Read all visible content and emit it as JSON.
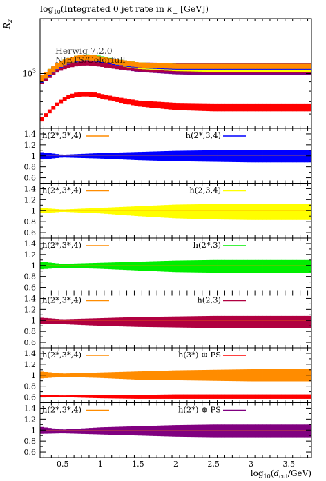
{
  "chart_data": {
    "type": "area",
    "title": "log10(Integrated 0 jet rate in kT [GeV])",
    "ylabel_main": "R2",
    "xlabel": "log10(dcut/GeV)",
    "xlim": [
      0.2,
      3.8
    ],
    "x_ticks": [
      "0.5",
      "1",
      "1.5",
      "2",
      "2.5",
      "3",
      "3.5"
    ],
    "main": {
      "ylim": [
        500,
        2000
      ],
      "y_tick_label": "10^3",
      "watermark": [
        "Herwig 7.2.0",
        "NJETS/Colorfull"
      ],
      "series": [
        {
          "name": "h(2*,3*,4)",
          "color": "#ff8c00",
          "x": [
            0.2,
            0.3,
            0.4,
            0.5,
            0.6,
            0.7,
            0.8,
            0.9,
            1.0,
            1.2,
            1.5,
            2.0,
            2.5,
            3.0,
            3.5,
            3.8
          ],
          "lo": [
            880,
            960,
            1040,
            1100,
            1140,
            1170,
            1180,
            1175,
            1160,
            1120,
            1080,
            1060,
            1060,
            1060,
            1060,
            1060
          ],
          "hi": [
            960,
            1040,
            1120,
            1180,
            1230,
            1260,
            1270,
            1265,
            1240,
            1200,
            1150,
            1130,
            1130,
            1130,
            1130,
            1130
          ]
        },
        {
          "name": "h(2*,3,4)",
          "color": "#0000ff",
          "x": [
            0.2,
            0.3,
            0.4,
            0.5,
            0.6,
            0.7,
            0.8,
            0.9,
            1.0,
            1.2,
            1.5,
            2.0,
            2.5,
            3.0,
            3.5,
            3.8
          ],
          "lo": [
            870,
            950,
            1030,
            1090,
            1130,
            1160,
            1170,
            1165,
            1150,
            1110,
            1070,
            1050,
            1050,
            1050,
            1050,
            1050
          ],
          "hi": [
            950,
            1030,
            1110,
            1170,
            1220,
            1250,
            1260,
            1255,
            1230,
            1190,
            1140,
            1120,
            1120,
            1120,
            1120,
            1120
          ]
        },
        {
          "name": "h(2,3,4)",
          "color": "#ffff00",
          "x": [
            0.2,
            0.3,
            0.4,
            0.5,
            0.6,
            0.7,
            0.8,
            0.9,
            1.0,
            1.2,
            1.5,
            2.0,
            2.5,
            3.0,
            3.5,
            3.8
          ],
          "lo": [
            870,
            950,
            1030,
            1090,
            1130,
            1160,
            1170,
            1165,
            1150,
            1110,
            1060,
            1030,
            1020,
            1020,
            1020,
            1020
          ],
          "hi": [
            950,
            1030,
            1110,
            1170,
            1220,
            1250,
            1260,
            1255,
            1230,
            1190,
            1150,
            1130,
            1130,
            1130,
            1130,
            1130
          ]
        },
        {
          "name": "h(2*,3)",
          "color": "#00ee00",
          "x": [
            0.2,
            0.3,
            0.4,
            0.5,
            0.6,
            0.7,
            0.8,
            0.9,
            1.0,
            1.2,
            1.5,
            2.0,
            2.5,
            3.0,
            3.5,
            3.8
          ],
          "lo": [
            870,
            950,
            1030,
            1090,
            1130,
            1160,
            1170,
            1165,
            1150,
            1110,
            1060,
            1030,
            1020,
            1020,
            1020,
            1020
          ],
          "hi": [
            960,
            1040,
            1120,
            1180,
            1230,
            1260,
            1275,
            1270,
            1250,
            1200,
            1150,
            1130,
            1130,
            1130,
            1130,
            1130
          ]
        },
        {
          "name": "h(2,3)",
          "color": "#b00040",
          "x": [
            0.2,
            0.3,
            0.4,
            0.5,
            0.6,
            0.7,
            0.8,
            0.9,
            1.0,
            1.2,
            1.5,
            2.0,
            2.5,
            3.0,
            3.5,
            3.8
          ],
          "lo": [
            860,
            930,
            1000,
            1050,
            1080,
            1100,
            1110,
            1105,
            1090,
            1060,
            1030,
            1010,
            1005,
            1005,
            1005,
            1005
          ],
          "hi": [
            950,
            1030,
            1110,
            1170,
            1220,
            1250,
            1260,
            1255,
            1230,
            1190,
            1140,
            1120,
            1120,
            1120,
            1120,
            1120
          ]
        },
        {
          "name": "h(3*) ⊕ PS",
          "color": "#ff0000",
          "x": [
            0.2,
            0.3,
            0.4,
            0.5,
            0.6,
            0.7,
            0.8,
            0.9,
            1.0,
            1.2,
            1.5,
            2.0,
            2.5,
            3.0,
            3.5,
            3.8
          ],
          "lo": [
            530,
            590,
            650,
            700,
            730,
            745,
            750,
            745,
            730,
            700,
            660,
            630,
            620,
            620,
            620,
            620
          ],
          "hi": [
            560,
            620,
            680,
            730,
            770,
            790,
            795,
            790,
            775,
            745,
            710,
            690,
            685,
            685,
            685,
            685
          ]
        },
        {
          "name": "h(2*) ⊕ PS",
          "color": "#800080",
          "x": [
            0.2,
            0.3,
            0.4,
            0.5,
            0.6,
            0.7,
            0.8,
            0.9,
            1.0,
            1.2,
            1.5,
            2.0,
            2.5,
            3.0,
            3.5,
            3.8
          ],
          "lo": [
            860,
            930,
            1000,
            1050,
            1080,
            1100,
            1110,
            1105,
            1090,
            1060,
            1020,
            990,
            980,
            980,
            980,
            980
          ],
          "hi": [
            950,
            1030,
            1110,
            1170,
            1220,
            1250,
            1260,
            1255,
            1230,
            1190,
            1150,
            1140,
            1140,
            1140,
            1140,
            1140
          ]
        }
      ]
    },
    "ratio": {
      "ylim": [
        0.5,
        1.5
      ],
      "y_ticks": [
        "0.6",
        "0.8",
        "1",
        "1.2",
        "1.4"
      ],
      "reference": "h(2*,3*,4)",
      "reference_color": "#ff8c00",
      "panels": [
        {
          "name": "h(2*,3,4)",
          "color": "#0000ff",
          "x": [
            0.2,
            0.5,
            1.0,
            1.5,
            2.0,
            2.5,
            3.0,
            3.5,
            3.8
          ],
          "lo": [
            0.93,
            0.97,
            0.95,
            0.92,
            0.9,
            0.89,
            0.88,
            0.88,
            0.88
          ],
          "hi": [
            1.07,
            1.02,
            1.05,
            1.07,
            1.09,
            1.1,
            1.1,
            1.1,
            1.1
          ]
        },
        {
          "name": "h(2,3,4)",
          "color": "#ffff00",
          "x": [
            0.2,
            0.5,
            1.0,
            1.5,
            2.0,
            2.5,
            3.0,
            3.5,
            3.8
          ],
          "lo": [
            0.95,
            0.98,
            0.95,
            0.9,
            0.86,
            0.84,
            0.83,
            0.83,
            0.83
          ],
          "hi": [
            1.05,
            1.02,
            1.05,
            1.08,
            1.11,
            1.12,
            1.12,
            1.12,
            1.12
          ]
        },
        {
          "name": "h(2*,3)",
          "color": "#00ee00",
          "x": [
            0.2,
            0.5,
            1.0,
            1.5,
            2.0,
            2.5,
            3.0,
            3.5,
            3.8
          ],
          "lo": [
            0.93,
            0.96,
            0.94,
            0.91,
            0.88,
            0.87,
            0.87,
            0.87,
            0.87
          ],
          "hi": [
            1.07,
            1.03,
            1.05,
            1.07,
            1.09,
            1.1,
            1.1,
            1.1,
            1.1
          ]
        },
        {
          "name": "h(2,3)",
          "color": "#b00040",
          "x": [
            0.2,
            0.5,
            1.0,
            1.5,
            2.0,
            2.5,
            3.0,
            3.5,
            3.8
          ],
          "lo": [
            0.93,
            0.93,
            0.9,
            0.88,
            0.87,
            0.86,
            0.86,
            0.86,
            0.86
          ],
          "hi": [
            1.05,
            1.02,
            1.04,
            1.06,
            1.07,
            1.08,
            1.08,
            1.08,
            1.08
          ]
        },
        {
          "name": "h(3*) ⊕ PS",
          "color": "#ff0000",
          "color_ref": "#ff8c00",
          "x": [
            0.2,
            0.5,
            1.0,
            1.5,
            2.0,
            2.5,
            3.0,
            3.5,
            3.8
          ],
          "lo": [
            0.6,
            0.6,
            0.58,
            0.57,
            0.57,
            0.57,
            0.57,
            0.57,
            0.57
          ],
          "hi": [
            0.64,
            0.63,
            0.64,
            0.64,
            0.65,
            0.65,
            0.65,
            0.65,
            0.65
          ]
        },
        {
          "name": "h(2*) ⊕ PS",
          "color": "#800080",
          "x": [
            0.2,
            0.5,
            1.0,
            1.5,
            2.0,
            2.5,
            3.0,
            3.5,
            3.8
          ],
          "lo": [
            0.93,
            0.94,
            0.92,
            0.9,
            0.88,
            0.87,
            0.87,
            0.87,
            0.87
          ],
          "hi": [
            1.06,
            1.01,
            1.05,
            1.07,
            1.09,
            1.1,
            1.1,
            1.1,
            1.1
          ]
        }
      ]
    }
  }
}
